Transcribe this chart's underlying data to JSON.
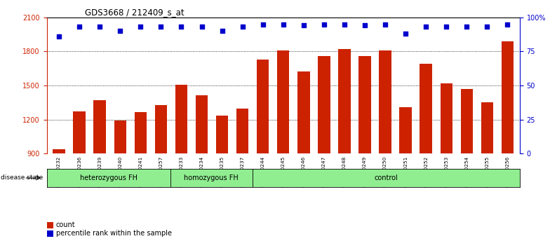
{
  "title": "GDS3668 / 212409_s_at",
  "samples": [
    "GSM140232",
    "GSM140236",
    "GSM140239",
    "GSM140240",
    "GSM140241",
    "GSM140257",
    "GSM140233",
    "GSM140234",
    "GSM140235",
    "GSM140237",
    "GSM140244",
    "GSM140245",
    "GSM140246",
    "GSM140247",
    "GSM140248",
    "GSM140249",
    "GSM140250",
    "GSM140251",
    "GSM140252",
    "GSM140253",
    "GSM140254",
    "GSM140255",
    "GSM140256"
  ],
  "counts": [
    940,
    1270,
    1370,
    1195,
    1265,
    1330,
    1510,
    1415,
    1235,
    1295,
    1730,
    1810,
    1625,
    1760,
    1820,
    1760,
    1810,
    1310,
    1690,
    1520,
    1470,
    1350,
    1890
  ],
  "percentiles": [
    86,
    93,
    93,
    90,
    93,
    93,
    93,
    93,
    90,
    93,
    95,
    95,
    94,
    95,
    95,
    94,
    95,
    88,
    93,
    93,
    93,
    93,
    95
  ],
  "group_labels": [
    "heterozygous FH",
    "homozygous FH",
    "control"
  ],
  "group_starts": [
    0,
    6,
    10
  ],
  "group_ends": [
    6,
    10,
    23
  ],
  "bar_color": "#cc2200",
  "dot_color": "#0000cc",
  "ylim_left": [
    900,
    2100
  ],
  "ylim_right": [
    0,
    100
  ],
  "yticks_left": [
    900,
    1200,
    1500,
    1800,
    2100
  ],
  "yticks_right": [
    0,
    25,
    50,
    75,
    100
  ],
  "yticklabels_right": [
    "0",
    "25",
    "50",
    "75",
    "100%"
  ],
  "grid_values": [
    1200,
    1500,
    1800
  ],
  "axis_color_left": "#cc2200",
  "axis_color_right": "#0000cc",
  "group_color": "#90EE90"
}
